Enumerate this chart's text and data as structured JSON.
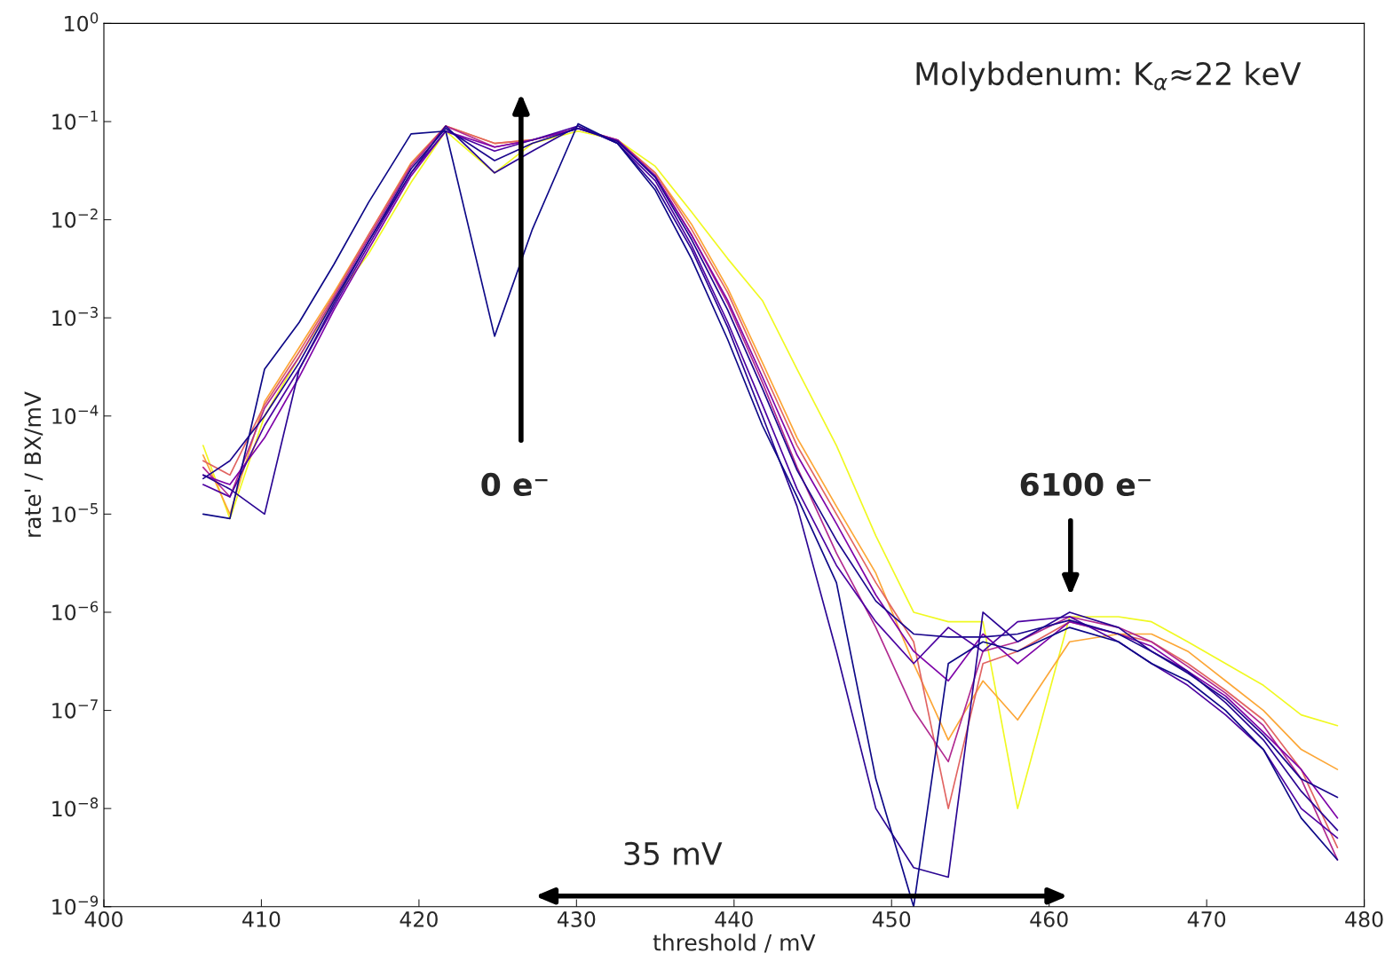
{
  "chart_data": {
    "type": "line",
    "xlabel": "threshold / mV",
    "ylabel": "rate' / BX/mV",
    "log": "y",
    "x": [
      406.3,
      408,
      410.2,
      412.4,
      414.6,
      416.8,
      419.5,
      421.7,
      424.8,
      427.2,
      430.1,
      432.6,
      435,
      437.3,
      439.6,
      441.8,
      444,
      446.5,
      449,
      451.4,
      453.6,
      455.8,
      458,
      461.3,
      464.4,
      466.5,
      468.8,
      471.2,
      473.6,
      476,
      478.3
    ],
    "series": [
      {
        "color": "#f0f921",
        "values": [
          5e-05,
          9e-06,
          0.0001,
          0.0004,
          0.0015,
          0.0045,
          0.024,
          0.08,
          0.03,
          0.06,
          0.08,
          0.065,
          0.035,
          0.012,
          0.004,
          0.0015,
          0.0003,
          5e-05,
          6e-06,
          1e-06,
          8e-07,
          8e-07,
          1e-08,
          9e-07,
          9e-07,
          8e-07,
          5e-07,
          3e-07,
          1.8e-07,
          9e-08,
          7e-08
        ]
      },
      {
        "color": "#fca636",
        "values": [
          4e-05,
          1e-05,
          0.00014,
          0.0005,
          0.0018,
          0.007,
          0.038,
          0.09,
          0.06,
          0.065,
          0.085,
          0.065,
          0.03,
          0.009,
          0.002,
          0.00035,
          6e-05,
          1.2e-05,
          2.5e-06,
          3e-07,
          5e-08,
          2e-07,
          8e-08,
          5e-07,
          6e-07,
          6e-07,
          4e-07,
          2e-07,
          1e-07,
          4e-08,
          2.5e-08
        ]
      },
      {
        "color": "#e16462",
        "values": [
          3.5e-05,
          2.5e-05,
          0.00013,
          0.00045,
          0.0017,
          0.007,
          0.037,
          0.09,
          0.06,
          0.065,
          0.085,
          0.065,
          0.03,
          0.008,
          0.0018,
          0.0003,
          5e-05,
          1e-05,
          2e-06,
          5e-07,
          1e-08,
          3e-07,
          4e-07,
          8e-07,
          6e-07,
          5e-07,
          3e-07,
          1.6e-07,
          8e-08,
          2.5e-08,
          4e-09
        ]
      },
      {
        "color": "#b12a90",
        "values": [
          3e-05,
          1.5e-05,
          0.00012,
          0.0004,
          0.0016,
          0.0065,
          0.035,
          0.09,
          0.055,
          0.065,
          0.085,
          0.063,
          0.028,
          0.007,
          0.0014,
          0.00022,
          3e-05,
          4e-06,
          7e-07,
          1e-07,
          3e-08,
          4e-07,
          5e-07,
          9e-07,
          7e-07,
          5e-07,
          2.8e-07,
          1.5e-07,
          7e-08,
          2e-08,
          3e-09
        ]
      },
      {
        "color": "#7e03a8",
        "values": [
          2.5e-05,
          2e-05,
          6e-05,
          0.00025,
          0.0012,
          0.005,
          0.028,
          0.08,
          0.055,
          0.065,
          0.085,
          0.065,
          0.028,
          0.007,
          0.0015,
          0.00025,
          4e-05,
          8e-06,
          1.5e-06,
          4e-07,
          2e-07,
          6e-07,
          3e-07,
          8e-07,
          6e-07,
          4.5e-07,
          2.5e-07,
          1.4e-07,
          6e-08,
          2.5e-08,
          8e-09
        ]
      },
      {
        "color": "#4c02a1",
        "values": [
          2e-05,
          1.5e-05,
          8e-05,
          0.0003,
          0.0013,
          0.0055,
          0.03,
          0.08,
          0.05,
          0.065,
          0.09,
          0.06,
          0.025,
          0.0055,
          0.0009,
          0.00013,
          1.8e-05,
          3e-06,
          8e-07,
          3e-07,
          7e-07,
          4e-07,
          8e-07,
          9e-07,
          5e-07,
          3e-07,
          1.8e-07,
          9e-08,
          4e-08,
          1e-08,
          5e-09
        ]
      },
      {
        "color": "#2a0593",
        "values": [
          2.5e-05,
          1.8e-05,
          1e-05,
          0.0003,
          0.0014,
          0.006,
          0.03,
          0.09,
          0.03,
          0.05,
          0.09,
          0.06,
          0.022,
          0.005,
          0.0008,
          0.0001,
          1.2e-05,
          4e-07,
          1e-08,
          2.5e-09,
          2e-09,
          1e-06,
          5e-07,
          1e-06,
          7e-07,
          4e-07,
          2.5e-07,
          1.2e-07,
          5e-08,
          1.5e-08,
          6e-09
        ]
      },
      {
        "color": "#0d0887",
        "values": [
          1e-05,
          9e-06,
          0.0003,
          0.0009,
          0.0035,
          0.015,
          0.075,
          0.08,
          0.00065,
          0.008,
          0.095,
          0.06,
          0.02,
          0.004,
          0.0006,
          8e-05,
          1.5e-05,
          2e-06,
          2e-08,
          1e-09,
          3e-07,
          5e-07,
          4e-07,
          7e-07,
          5e-07,
          3e-07,
          2e-07,
          1e-07,
          4e-08,
          8e-09,
          3e-09
        ]
      },
      {
        "color": "#1b068d",
        "values": [
          2.3e-05,
          3.5e-05,
          0.0001,
          0.00035,
          0.0015,
          0.006,
          0.033,
          0.085,
          0.04,
          0.06,
          0.085,
          0.063,
          0.027,
          0.0063,
          0.0012,
          0.00019,
          2.8e-05,
          5.4e-06,
          1.3e-06,
          6e-07,
          5.6e-07,
          5.6e-07,
          6e-07,
          8.3e-07,
          6e-07,
          4e-07,
          2.4e-07,
          1.3e-07,
          5.6e-08,
          2e-08,
          1.3e-08
        ]
      }
    ],
    "xlim": [
      400,
      480
    ],
    "xticks": [
      400,
      410,
      420,
      430,
      440,
      450,
      460,
      470,
      480
    ],
    "ylim": [
      1e-09,
      1
    ],
    "yticks": [
      {
        "value": 1e-09,
        "label": "10$^{−9}$"
      },
      {
        "value": 1e-08,
        "label": "10$^{−8}$"
      },
      {
        "value": 1e-07,
        "label": "10$^{−7}$"
      },
      {
        "value": 1e-06,
        "label": "10$^{−6}$"
      },
      {
        "value": 1e-05,
        "label": "10$^{−5}$"
      },
      {
        "value": 0.0001,
        "label": "10$^{−4}$"
      },
      {
        "value": 0.001,
        "label": "10$^{−3}$"
      },
      {
        "value": 0.01,
        "label": "10$^{−2}$"
      },
      {
        "value": 0.1,
        "label": "10$^{−1}$"
      },
      {
        "value": 1,
        "label": "10$^{0}$"
      }
    ],
    "grid": false,
    "legend": false,
    "marker": "none",
    "line_style": "solid",
    "annotations": [
      "Molybdenum: K$_{α}$≈22 keV",
      "0 e⁻",
      "6100 e⁻",
      "35 mV"
    ]
  }
}
